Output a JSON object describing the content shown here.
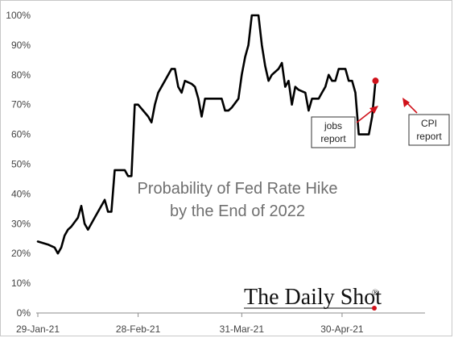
{
  "chart_data": {
    "type": "line",
    "title": "Probability of Fed Rate Hike",
    "subtitle": "by the End of 2022",
    "xlabel": "",
    "ylabel": "",
    "ylim": [
      0,
      100
    ],
    "y_ticks": [
      0,
      10,
      20,
      30,
      40,
      50,
      60,
      70,
      80,
      90,
      100
    ],
    "y_tick_format": "%",
    "x_tick_labels": [
      "29-Jan-21",
      "28-Feb-21",
      "31-Mar-21",
      "30-Apr-21"
    ],
    "x_ticks_day": [
      0,
      30,
      61,
      91
    ],
    "xlim_day": [
      0,
      111
    ],
    "grid": false,
    "legend": "none",
    "series": [
      {
        "color": "#000000",
        "points": [
          [
            0,
            24
          ],
          [
            3,
            23
          ],
          [
            5,
            22
          ],
          [
            6,
            20
          ],
          [
            7,
            22
          ],
          [
            8,
            26
          ],
          [
            9,
            28
          ],
          [
            10,
            29
          ],
          [
            12,
            32
          ],
          [
            13,
            36
          ],
          [
            14,
            30
          ],
          [
            15,
            28
          ],
          [
            17,
            32
          ],
          [
            20,
            38
          ],
          [
            21,
            34
          ],
          [
            22,
            34
          ],
          [
            23,
            48
          ],
          [
            24,
            48
          ],
          [
            25,
            48
          ],
          [
            26,
            48
          ],
          [
            27,
            46
          ],
          [
            28,
            46
          ],
          [
            29,
            70
          ],
          [
            30,
            70
          ],
          [
            33,
            66
          ],
          [
            34,
            64
          ],
          [
            35,
            70
          ],
          [
            36,
            74
          ],
          [
            38,
            78
          ],
          [
            40,
            82
          ],
          [
            41,
            82
          ],
          [
            42,
            76
          ],
          [
            43,
            74
          ],
          [
            44,
            78
          ],
          [
            46,
            77
          ],
          [
            47,
            76
          ],
          [
            48,
            72
          ],
          [
            49,
            66
          ],
          [
            50,
            72
          ],
          [
            51,
            72
          ],
          [
            53,
            72
          ],
          [
            55,
            72
          ],
          [
            56,
            68
          ],
          [
            57,
            68
          ],
          [
            58,
            69
          ],
          [
            60,
            72
          ],
          [
            61,
            80
          ],
          [
            62,
            86
          ],
          [
            63,
            90
          ],
          [
            64,
            100
          ],
          [
            65,
            100
          ],
          [
            66,
            100
          ],
          [
            67,
            90
          ],
          [
            68,
            83
          ],
          [
            69,
            78
          ],
          [
            70,
            80
          ],
          [
            72,
            82
          ],
          [
            73,
            84
          ],
          [
            74,
            76
          ],
          [
            75,
            78
          ],
          [
            76,
            70
          ],
          [
            77,
            76
          ],
          [
            78,
            75
          ],
          [
            80,
            74
          ],
          [
            81,
            68
          ],
          [
            82,
            72
          ],
          [
            83,
            72
          ],
          [
            84,
            72
          ],
          [
            85,
            74
          ],
          [
            86,
            76
          ],
          [
            87,
            80
          ],
          [
            88,
            78
          ],
          [
            89,
            78
          ],
          [
            90,
            82
          ],
          [
            91,
            82
          ],
          [
            92,
            82
          ],
          [
            93,
            78
          ],
          [
            94,
            78
          ],
          [
            95,
            74
          ],
          [
            96,
            60
          ],
          [
            97,
            60
          ],
          [
            98,
            60
          ],
          [
            99,
            60
          ],
          [
            100,
            66
          ],
          [
            101,
            78
          ]
        ]
      }
    ],
    "annotations": [
      {
        "text": [
          "jobs",
          "report"
        ],
        "target_day": 96,
        "target_value": 63
      },
      {
        "text": [
          "CPI",
          "report"
        ],
        "target_day": 101,
        "target_value": 78
      }
    ],
    "highlight_point": {
      "day": 101,
      "value": 78,
      "color": "#d0121b"
    }
  },
  "branding": {
    "name": "The Daily Shot",
    "mark": "®",
    "accent_color": "#d0121b"
  },
  "colors": {
    "line": "#000000",
    "axis": "#8c8c8c",
    "arrow": "#d0121b"
  }
}
